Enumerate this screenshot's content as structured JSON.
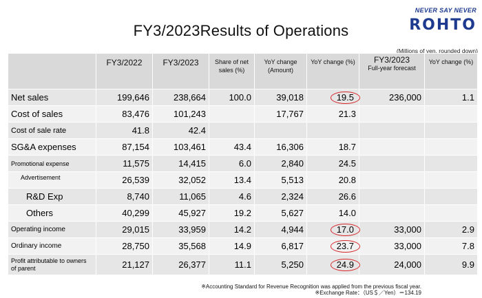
{
  "header": {
    "title": "FY3/2023Results of Operations",
    "logo_tagline": "NEVER SAY NEVER",
    "logo_brand": "ROHTO",
    "units_note": "(Millions of yen, rounded down)"
  },
  "table": {
    "columns": [
      "FY3/2022",
      "FY3/2023",
      "Share of net sales (%)",
      "YoY change (Amount)",
      "YoY change (%)",
      "FY3/2023",
      "Full-year forecast",
      "YoY change (%)"
    ],
    "rows": [
      {
        "label": "Net sales",
        "fy22": "199,646",
        "fy23": "238,664",
        "share": "100.0",
        "yoy_amt": "39,018",
        "yoy_pct": "19.5",
        "forecast": "236,000",
        "fc_yoy": "1.1"
      },
      {
        "label": "Cost of sales",
        "fy22": "83,476",
        "fy23": "101,243",
        "share": "",
        "yoy_amt": "17,767",
        "yoy_pct": "21.3",
        "forecast": "",
        "fc_yoy": ""
      },
      {
        "label": "Cost of sale rate",
        "fy22": "41.8",
        "fy23": "42.4",
        "share": "",
        "yoy_amt": "",
        "yoy_pct": "",
        "forecast": "",
        "fc_yoy": ""
      },
      {
        "label": "SG&A expenses",
        "fy22": "87,154",
        "fy23": "103,461",
        "share": "43.4",
        "yoy_amt": "16,306",
        "yoy_pct": "18.7",
        "forecast": "",
        "fc_yoy": ""
      },
      {
        "label": "Promotional expense",
        "fy22": "11,575",
        "fy23": "14,415",
        "share": "6.0",
        "yoy_amt": "2,840",
        "yoy_pct": "24.5",
        "forecast": "",
        "fc_yoy": ""
      },
      {
        "label": "Advertisement",
        "fy22": "26,539",
        "fy23": "32,052",
        "share": "13.4",
        "yoy_amt": "5,513",
        "yoy_pct": "20.8",
        "forecast": "",
        "fc_yoy": ""
      },
      {
        "label": "R&D Exp",
        "fy22": "8,740",
        "fy23": "11,065",
        "share": "4.6",
        "yoy_amt": "2,324",
        "yoy_pct": "26.6",
        "forecast": "",
        "fc_yoy": ""
      },
      {
        "label": "Others",
        "fy22": "40,299",
        "fy23": "45,927",
        "share": "19.2",
        "yoy_amt": "5,627",
        "yoy_pct": "14.0",
        "forecast": "",
        "fc_yoy": ""
      },
      {
        "label": "Operating income",
        "fy22": "29,015",
        "fy23": "33,959",
        "share": "14.2",
        "yoy_amt": "4,944",
        "yoy_pct": "17.0",
        "forecast": "33,000",
        "fc_yoy": "2.9"
      },
      {
        "label": "Ordinary income",
        "fy22": "28,750",
        "fy23": "35,568",
        "share": "14.9",
        "yoy_amt": "6,817",
        "yoy_pct": "23.7",
        "forecast": "33,000",
        "fc_yoy": "7.8"
      },
      {
        "label": "Profit attributable to owners of parent",
        "fy22": "21,127",
        "fy23": "26,377",
        "share": "11.1",
        "yoy_amt": "5,250",
        "yoy_pct": "24.9",
        "forecast": "24,000",
        "fc_yoy": "9.9"
      }
    ]
  },
  "notes": {
    "line1": "※Accounting Standard for Revenue Recognition was applied from the previous fiscal year.",
    "line2": "※Exchange Rate：（US＄／Yen）＝134.19"
  },
  "colors": {
    "header_bg": "#d9d9d9",
    "row_dark": "#e6e6e6",
    "row_light": "#f2f2f2",
    "highlight_circle": "#d7262b",
    "brand_blue": "#1d3a8f"
  }
}
